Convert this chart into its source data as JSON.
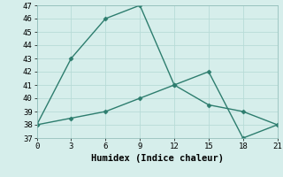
{
  "line1_x": [
    0,
    3,
    6,
    9,
    12,
    15,
    18,
    21
  ],
  "line1_y": [
    38,
    43,
    46,
    47,
    41,
    42,
    37,
    38
  ],
  "line2_x": [
    0,
    3,
    6,
    9,
    12,
    15,
    18,
    21
  ],
  "line2_y": [
    38,
    38.5,
    39,
    40,
    41,
    39.5,
    39,
    38
  ],
  "line_color": "#2d7d6e",
  "bg_color": "#d6eeeb",
  "grid_color": "#b8dbd7",
  "xlabel": "Humidex (Indice chaleur)",
  "xlim": [
    0,
    21
  ],
  "ylim": [
    37,
    47
  ],
  "yticks": [
    37,
    38,
    39,
    40,
    41,
    42,
    43,
    44,
    45,
    46,
    47
  ],
  "xticks": [
    0,
    3,
    6,
    9,
    12,
    15,
    18,
    21
  ],
  "marker": "D",
  "markersize": 2.5,
  "linewidth": 1.0,
  "xlabel_fontsize": 7.5,
  "tick_fontsize": 6.5,
  "font_family": "monospace"
}
